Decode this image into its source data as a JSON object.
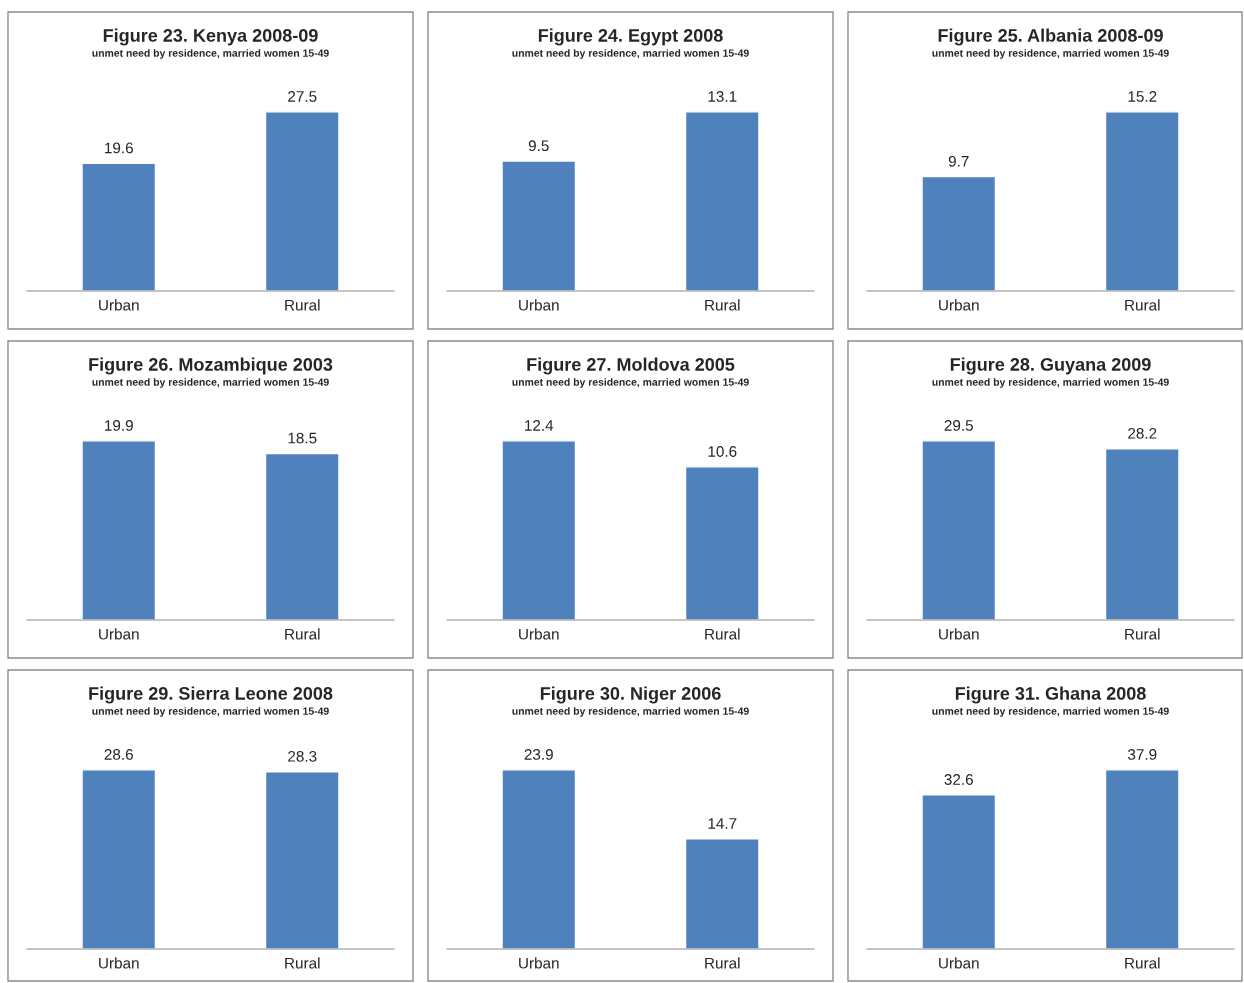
{
  "chart_data": [
    {
      "type": "bar",
      "title": "Figure 23. Kenya 2008-09",
      "subtitle": "unmet need by residence, married women 15-49",
      "categories": [
        "Urban",
        "Rural"
      ],
      "values": [
        19.6,
        27.5
      ],
      "color": "#4f81bd",
      "data_labels": true
    },
    {
      "type": "bar",
      "title": "Figure 24. Egypt 2008",
      "subtitle": "unmet need by residence, married women 15-49",
      "categories": [
        "Urban",
        "Rural"
      ],
      "values": [
        9.5,
        13.1
      ],
      "color": "#4f81bd",
      "data_labels": true
    },
    {
      "type": "bar",
      "title": "Figure 25. Albania 2008-09",
      "subtitle": "unmet need by residence, married women 15-49",
      "categories": [
        "Urban",
        "Rural"
      ],
      "values": [
        9.7,
        15.2
      ],
      "color": "#4f81bd",
      "data_labels": true
    },
    {
      "type": "bar",
      "title": "Figure 26. Mozambique 2003",
      "subtitle": "unmet need by residence, married women 15-49",
      "categories": [
        "Urban",
        "Rural"
      ],
      "values": [
        19.9,
        18.5
      ],
      "color": "#4f81bd",
      "data_labels": true
    },
    {
      "type": "bar",
      "title": "Figure 27. Moldova 2005",
      "subtitle": "unmet need by residence, married women 15-49",
      "categories": [
        "Urban",
        "Rural"
      ],
      "values": [
        12.4,
        10.6
      ],
      "color": "#4f81bd",
      "data_labels": true
    },
    {
      "type": "bar",
      "title": "Figure 28. Guyana 2009",
      "subtitle": "unmet need by residence, married women 15-49",
      "categories": [
        "Urban",
        "Rural"
      ],
      "values": [
        29.5,
        28.2
      ],
      "color": "#4f81bd",
      "data_labels": true
    },
    {
      "type": "bar",
      "title": "Figure 29. Sierra Leone 2008",
      "subtitle": "unmet need by residence, married women 15-49",
      "categories": [
        "Urban",
        "Rural"
      ],
      "values": [
        28.6,
        28.3
      ],
      "color": "#4f81bd",
      "data_labels": true
    },
    {
      "type": "bar",
      "title": "Figure 30. Niger 2006",
      "subtitle": "unmet need by residence, married women 15-49",
      "categories": [
        "Urban",
        "Rural"
      ],
      "values": [
        23.9,
        14.7
      ],
      "color": "#4f81bd",
      "data_labels": true
    },
    {
      "type": "bar",
      "title": "Figure 31. Ghana 2008",
      "subtitle": "unmet need by residence, married women 15-49",
      "categories": [
        "Urban",
        "Rural"
      ],
      "values": [
        32.6,
        37.9
      ],
      "color": "#4f81bd",
      "data_labels": true
    }
  ]
}
